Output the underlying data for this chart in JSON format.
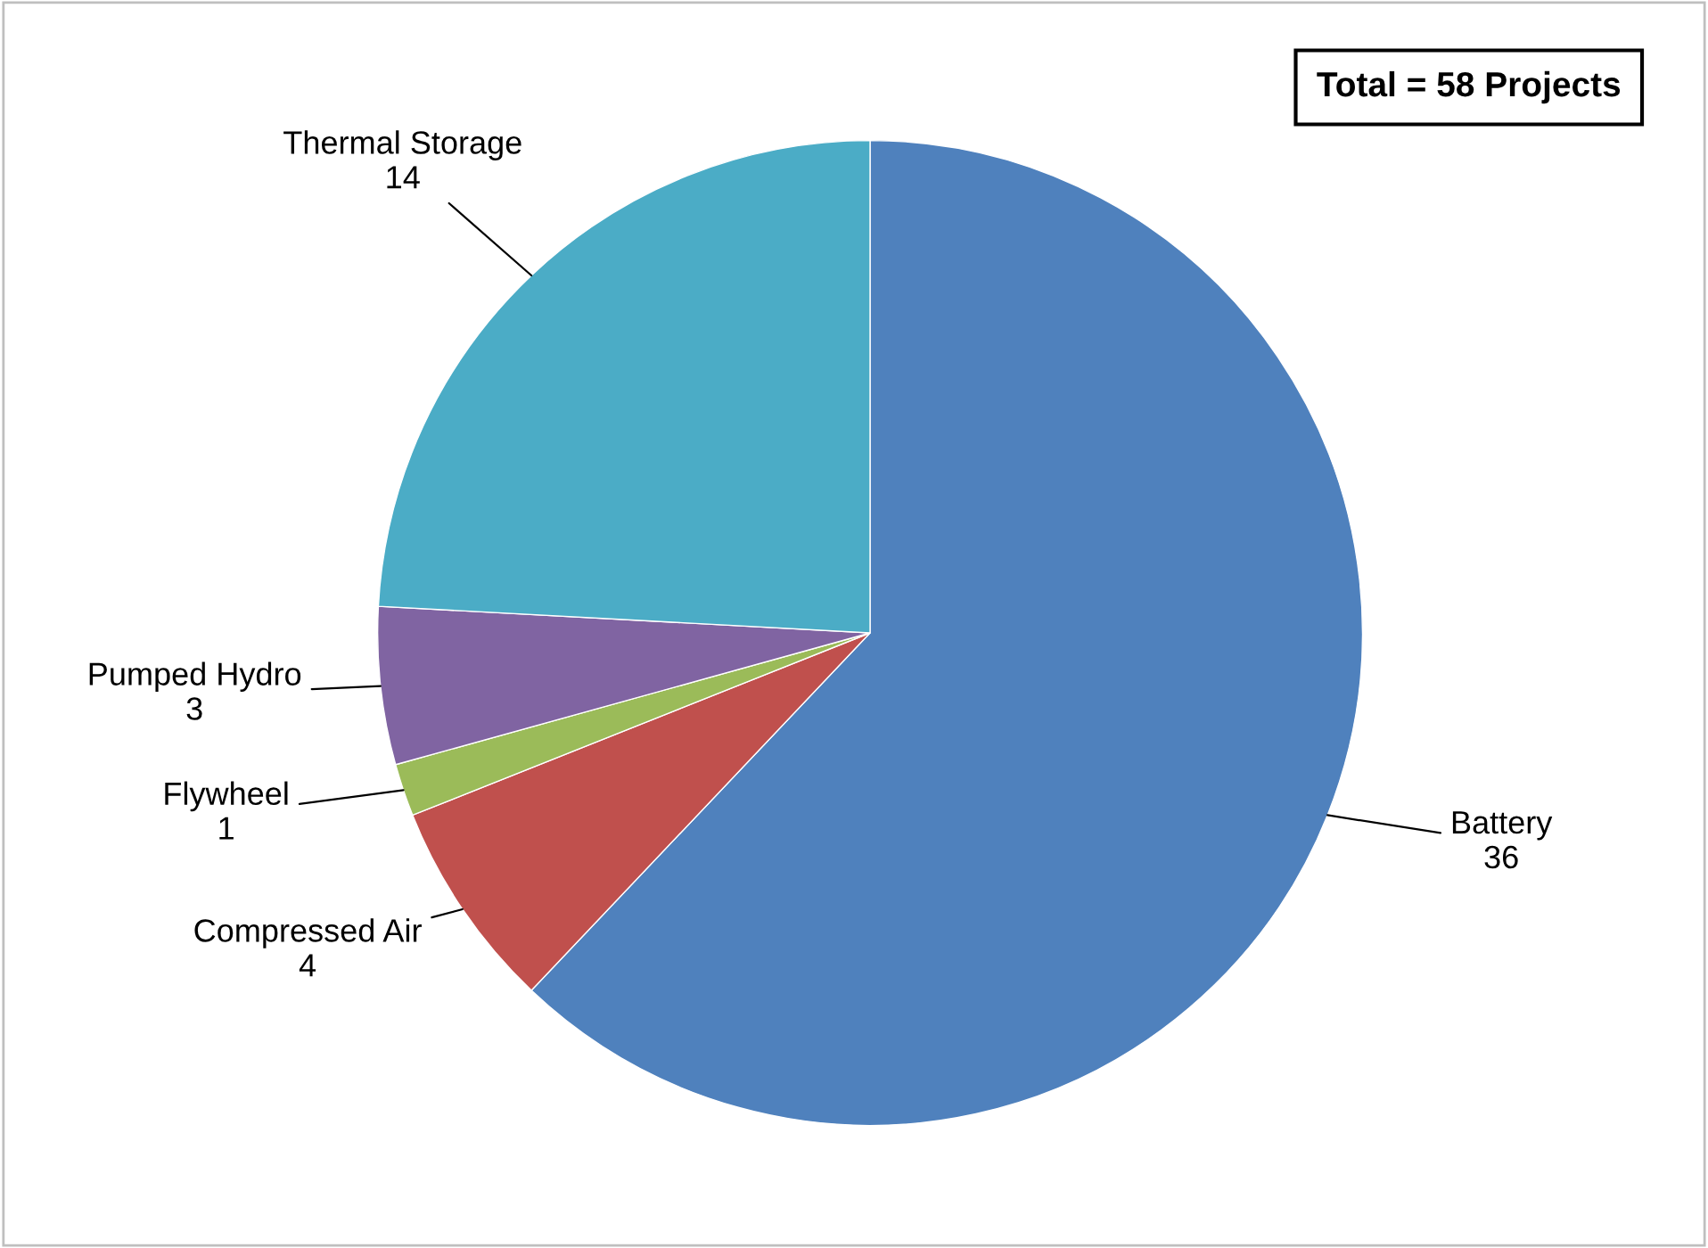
{
  "chart_data": {
    "type": "pie",
    "categories": [
      "Battery",
      "Compressed Air",
      "Flywheel",
      "Pumped Hydro",
      "Thermal Storage"
    ],
    "values": [
      36,
      4,
      1,
      3,
      14
    ],
    "colors": [
      "#4f81bd",
      "#c0504d",
      "#9bbb59",
      "#8064a2",
      "#4bacc6"
    ],
    "data_labels": true,
    "legend": false,
    "annotations": [
      "Total = 58 Projects"
    ]
  }
}
